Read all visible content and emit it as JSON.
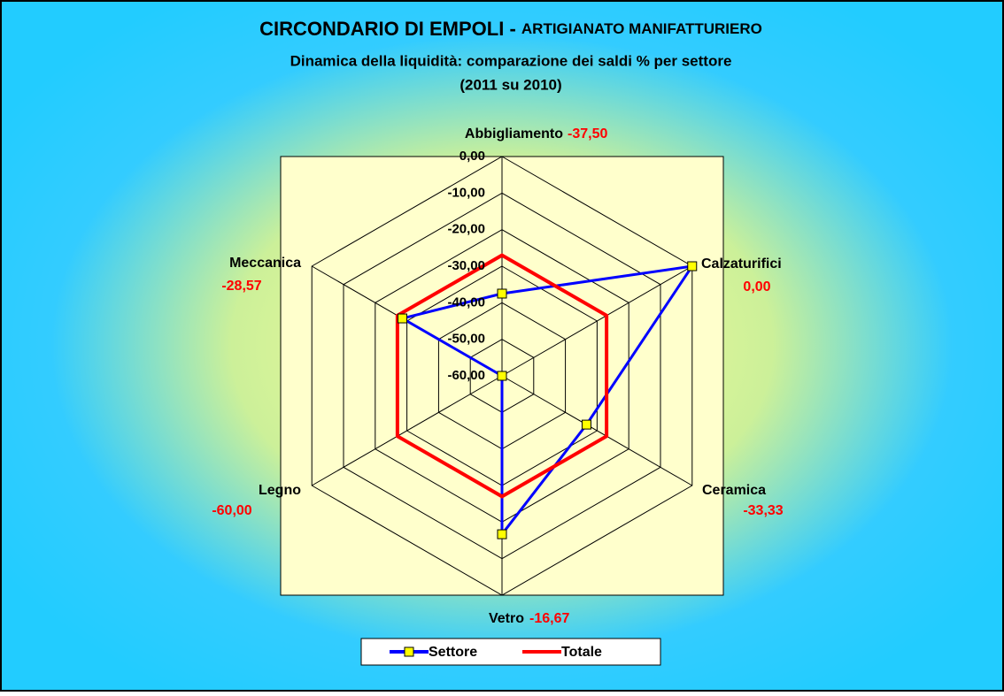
{
  "chart_data": {
    "type": "radar",
    "title": "CIRCONDARIO DI EMPOLI - ",
    "title_suffix": "ARTIGIANATO MANIFATTURIERO",
    "subtitle": [
      "Dinamica della liquidità: comparazione dei saldi % per settore",
      "(2011 su 2010)"
    ],
    "categories": [
      "Abbigliamento",
      "Calzaturifici",
      "Ceramica",
      "Vetro",
      "Legno",
      "Meccanica"
    ],
    "series": [
      {
        "name": "Settore",
        "color": "#0000ff",
        "marker_color": "#ffff00",
        "values": [
          -37.5,
          0,
          -33.33,
          -16.67,
          -60,
          -28.57
        ],
        "value_labels": [
          "-37,50",
          "0,00",
          "-33,33",
          "-16,67",
          "-60,00",
          "-28,57"
        ]
      },
      {
        "name": "Totale",
        "color": "#ff0000",
        "values": [
          -27,
          -27,
          -27,
          -27,
          -27,
          -27
        ]
      }
    ],
    "rlim": [
      -60,
      0
    ],
    "rticks": [
      {
        "value": 0,
        "label": "0,00"
      },
      {
        "value": -10,
        "label": "-10,00"
      },
      {
        "value": -20,
        "label": "-20,00"
      },
      {
        "value": -30,
        "label": "-30,00"
      },
      {
        "value": -40,
        "label": "-40,00"
      },
      {
        "value": -50,
        "label": "-50,00"
      },
      {
        "value": -60,
        "label": "-60,00"
      }
    ],
    "legend": "bottom"
  }
}
